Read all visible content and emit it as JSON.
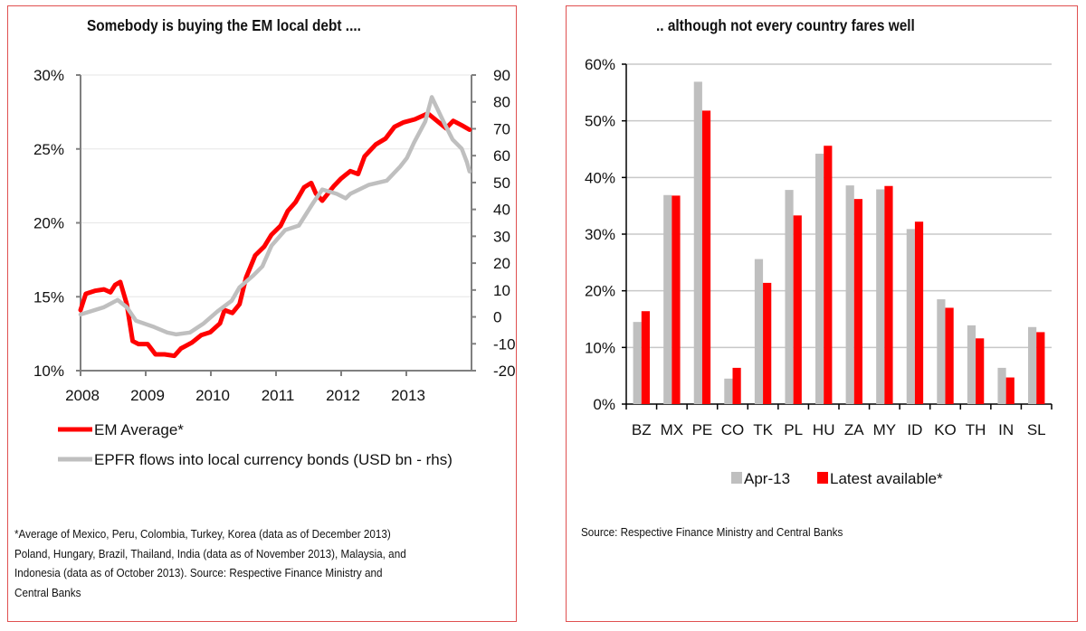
{
  "left_panel": {
    "title": "Somebody is buying the EM local debt ....",
    "footnote_lines": [
      "*Average of Mexico, Peru, Colombia, Turkey, Korea (data as of December 2013)",
      "Poland, Hungary, Brazil, Thailand, India (data as of November 2013), Malaysia, and",
      "Indonesia (data as of October 2013).   Source: Respective Finance Ministry and",
      "Central Banks"
    ]
  },
  "right_panel": {
    "title": ".. although not every country fares well",
    "footnote": "Source: Respective Finance Ministry and Central Banks"
  },
  "colors": {
    "border": "#e05050",
    "red_series": "#ff0000",
    "gray_series": "#bfbfbf",
    "gridline": "#e6e6e6",
    "axis": "#808080"
  },
  "chart_data": [
    {
      "type": "line",
      "title": "Somebody is buying the EM local debt ....",
      "xlabel": "",
      "ylabel": "",
      "x_ticks": [
        "2008",
        "2009",
        "2010",
        "2011",
        "2012",
        "2013"
      ],
      "xlim": [
        2008.0,
        2013.95
      ],
      "y_left": {
        "ylim": [
          0.1,
          0.3
        ],
        "ticks": [
          "10%",
          "15%",
          "20%",
          "25%",
          "30%"
        ],
        "tick_values": [
          0.1,
          0.15,
          0.2,
          0.25,
          0.3
        ]
      },
      "y_right": {
        "ylim": [
          -20,
          90
        ],
        "ticks": [
          "-20",
          "-10",
          "0",
          "10",
          "20",
          "30",
          "40",
          "50",
          "60",
          "70",
          "80",
          "90"
        ],
        "tick_values": [
          -20,
          -10,
          0,
          10,
          20,
          30,
          40,
          50,
          60,
          70,
          80,
          90
        ]
      },
      "grid": true,
      "legend_position": "bottom",
      "series": [
        {
          "name": "EM Average*",
          "axis": "left",
          "color": "#ff0000",
          "x": [
            2008.0,
            2008.08,
            2008.22,
            2008.36,
            2008.46,
            2008.53,
            2008.61,
            2008.71,
            2008.8,
            2008.89,
            2009.03,
            2009.15,
            2009.29,
            2009.44,
            2009.54,
            2009.71,
            2009.85,
            2009.99,
            2010.14,
            2010.21,
            2010.33,
            2010.44,
            2010.54,
            2010.68,
            2010.82,
            2010.93,
            2011.07,
            2011.18,
            2011.3,
            2011.43,
            2011.54,
            2011.61,
            2011.71,
            2011.89,
            2012.0,
            2012.14,
            2012.26,
            2012.36,
            2012.53,
            2012.68,
            2012.82,
            2012.96,
            2013.13,
            2013.33,
            2013.47,
            2013.61,
            2013.72,
            2013.85,
            2013.97
          ],
          "values": [
            0.141,
            0.152,
            0.154,
            0.155,
            0.153,
            0.158,
            0.16,
            0.145,
            0.12,
            0.118,
            0.118,
            0.111,
            0.111,
            0.11,
            0.115,
            0.119,
            0.124,
            0.126,
            0.132,
            0.141,
            0.139,
            0.145,
            0.163,
            0.178,
            0.184,
            0.192,
            0.198,
            0.208,
            0.214,
            0.224,
            0.227,
            0.22,
            0.215,
            0.225,
            0.23,
            0.235,
            0.233,
            0.245,
            0.253,
            0.257,
            0.265,
            0.268,
            0.27,
            0.274,
            0.269,
            0.264,
            0.269,
            0.266,
            0.263
          ]
        },
        {
          "name": "EPFR flows into local currency bonds (USD bn - rhs)",
          "axis": "right",
          "color": "#bfbfbf",
          "x": [
            2008.0,
            2008.36,
            2008.57,
            2008.71,
            2008.85,
            2009.13,
            2009.33,
            2009.47,
            2009.68,
            2009.89,
            2010.1,
            2010.32,
            2010.44,
            2010.65,
            2010.79,
            2010.93,
            2011.14,
            2011.35,
            2011.57,
            2011.71,
            2011.93,
            2012.07,
            2012.14,
            2012.42,
            2012.7,
            2012.9,
            2013.01,
            2013.12,
            2013.29,
            2013.39,
            2013.57,
            2013.71,
            2013.85,
            2013.93,
            2013.97
          ],
          "values": [
            0.9,
            3.6,
            6.3,
            3.6,
            -1.4,
            -3.8,
            -5.8,
            -6.5,
            -5.8,
            -2.4,
            2.0,
            6.0,
            11.0,
            15.4,
            18.8,
            26.5,
            32.3,
            34.0,
            42.4,
            47.4,
            45.8,
            44.1,
            45.8,
            49.1,
            50.7,
            55.8,
            59.2,
            64.9,
            72.7,
            81.8,
            72.7,
            66.0,
            62.6,
            57.5,
            54.1
          ]
        }
      ]
    },
    {
      "type": "bar",
      "title": ".. although not every country fares well",
      "xlabel": "",
      "ylabel": "",
      "categories": [
        "BZ",
        "MX",
        "PE",
        "CO",
        "TK",
        "PL",
        "HU",
        "ZA",
        "MY",
        "ID",
        "KO",
        "TH",
        "IN",
        "SL"
      ],
      "ylim": [
        0,
        0.6
      ],
      "y_ticks": [
        "0%",
        "10%",
        "20%",
        "30%",
        "40%",
        "50%",
        "60%"
      ],
      "y_tick_values": [
        0,
        0.1,
        0.2,
        0.3,
        0.4,
        0.5,
        0.6
      ],
      "grid": true,
      "legend_position": "bottom",
      "series": [
        {
          "name": "Apr-13",
          "color": "#bfbfbf",
          "values": [
            0.145,
            0.369,
            0.569,
            0.045,
            0.256,
            0.378,
            0.442,
            0.386,
            0.379,
            0.309,
            0.185,
            0.139,
            0.064,
            0.136
          ]
        },
        {
          "name": "Latest available*",
          "color": "#ff0000",
          "values": [
            0.164,
            0.368,
            0.518,
            0.064,
            0.214,
            0.333,
            0.456,
            0.362,
            0.385,
            0.322,
            0.17,
            0.116,
            0.047,
            0.127
          ]
        }
      ]
    }
  ]
}
